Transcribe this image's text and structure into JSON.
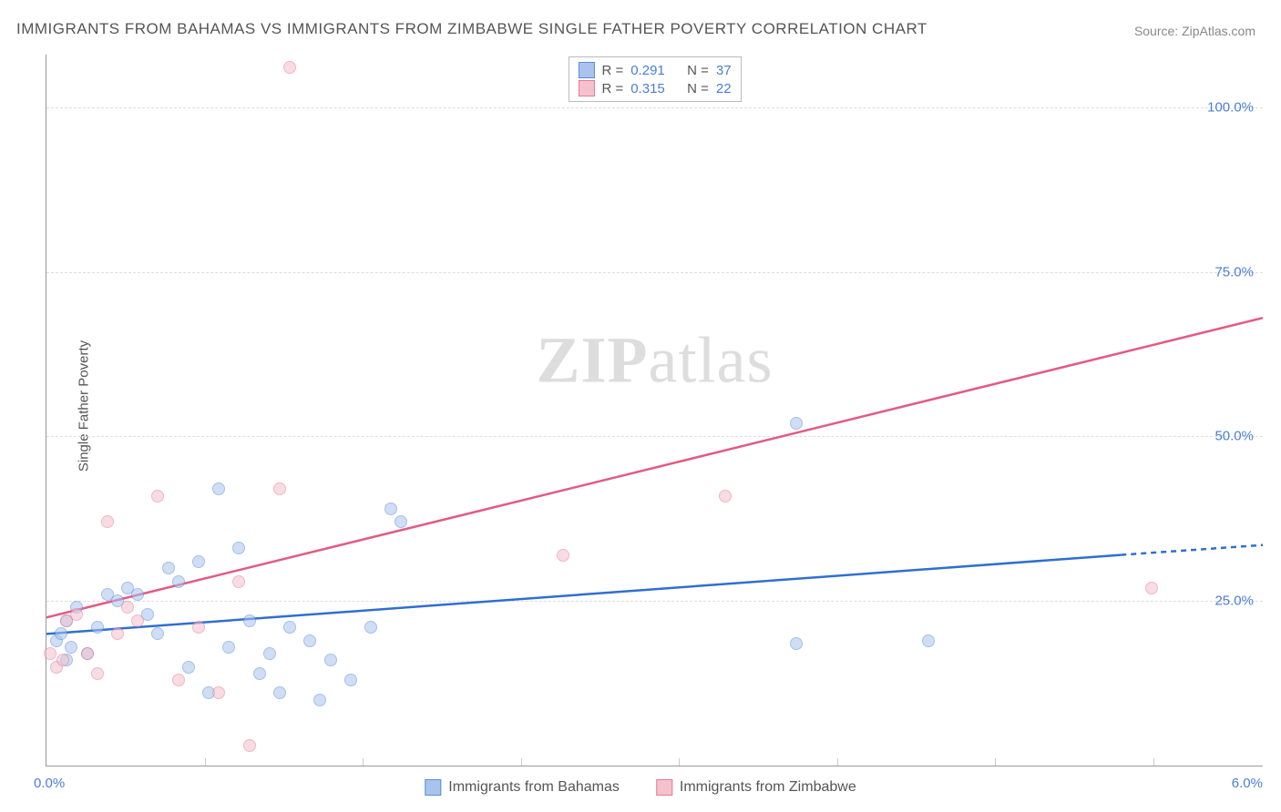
{
  "title": "IMMIGRANTS FROM BAHAMAS VS IMMIGRANTS FROM ZIMBABWE SINGLE FATHER POVERTY CORRELATION CHART",
  "source": "Source: ZipAtlas.com",
  "ylabel": "Single Father Poverty",
  "watermark": "ZIPatlas",
  "chart": {
    "type": "scatter",
    "xlim": [
      0.0,
      6.0
    ],
    "ylim": [
      0.0,
      108.0
    ],
    "x_ticks": [
      0.0,
      6.0
    ],
    "x_tick_labels": [
      "0.0%",
      "6.0%"
    ],
    "y_ticks": [
      25.0,
      50.0,
      75.0,
      100.0
    ],
    "y_tick_labels": [
      "25.0%",
      "50.0%",
      "75.0%",
      "100.0%"
    ],
    "x_grid_positions": [
      0.78,
      1.56,
      2.34,
      3.12,
      3.9,
      4.68,
      5.46
    ],
    "background_color": "#ffffff",
    "grid_color": "#dddddd",
    "axis_color": "#999999",
    "marker_size": 14,
    "marker_line_width": 1.5,
    "marker_opacity": 0.55,
    "series": [
      {
        "name": "Immigrants from Bahamas",
        "color_fill": "#a9c4ec",
        "color_stroke": "#5b8dd8",
        "r_value": "0.291",
        "n_value": "37",
        "trend_line": {
          "x1": 0.0,
          "y1": 20.0,
          "x2": 5.3,
          "y2": 32.0,
          "x3": 6.0,
          "y3": 33.5,
          "color": "#2f6fd0",
          "width": 2.5,
          "dash_after": 5.3
        },
        "points": [
          [
            0.05,
            19
          ],
          [
            0.07,
            20
          ],
          [
            0.1,
            16
          ],
          [
            0.1,
            22
          ],
          [
            0.12,
            18
          ],
          [
            0.15,
            24
          ],
          [
            0.2,
            17
          ],
          [
            0.25,
            21
          ],
          [
            0.3,
            26
          ],
          [
            0.35,
            25
          ],
          [
            0.4,
            27
          ],
          [
            0.45,
            26
          ],
          [
            0.5,
            23
          ],
          [
            0.55,
            20
          ],
          [
            0.6,
            30
          ],
          [
            0.65,
            28
          ],
          [
            0.7,
            15
          ],
          [
            0.75,
            31
          ],
          [
            0.8,
            11
          ],
          [
            0.85,
            42
          ],
          [
            0.9,
            18
          ],
          [
            0.95,
            33
          ],
          [
            1.0,
            22
          ],
          [
            1.05,
            14
          ],
          [
            1.1,
            17
          ],
          [
            1.15,
            11
          ],
          [
            1.2,
            21
          ],
          [
            1.3,
            19
          ],
          [
            1.35,
            10
          ],
          [
            1.4,
            16
          ],
          [
            1.5,
            13
          ],
          [
            1.6,
            21
          ],
          [
            1.7,
            39
          ],
          [
            1.75,
            37
          ],
          [
            3.7,
            52
          ],
          [
            3.7,
            18.5
          ],
          [
            4.35,
            19
          ]
        ]
      },
      {
        "name": "Immigrants from Zimbabwe",
        "color_fill": "#f4c1cd",
        "color_stroke": "#e67a98",
        "r_value": "0.315",
        "n_value": "22",
        "trend_line": {
          "x1": 0.0,
          "y1": 22.5,
          "x2": 6.0,
          "y2": 68.0,
          "color": "#e35a82",
          "width": 2.5
        },
        "points": [
          [
            0.02,
            17
          ],
          [
            0.05,
            15
          ],
          [
            0.08,
            16
          ],
          [
            0.1,
            22
          ],
          [
            0.15,
            23
          ],
          [
            0.2,
            17
          ],
          [
            0.25,
            14
          ],
          [
            0.3,
            37
          ],
          [
            0.35,
            20
          ],
          [
            0.4,
            24
          ],
          [
            0.45,
            22
          ],
          [
            0.55,
            41
          ],
          [
            0.65,
            13
          ],
          [
            0.75,
            21
          ],
          [
            0.85,
            11
          ],
          [
            0.95,
            28
          ],
          [
            1.0,
            3
          ],
          [
            1.15,
            42
          ],
          [
            1.2,
            106
          ],
          [
            2.55,
            32
          ],
          [
            3.35,
            41
          ],
          [
            5.45,
            27
          ]
        ]
      }
    ]
  },
  "r_legend": {
    "r_label": "R =",
    "n_label": "N ="
  },
  "bottom_legend_labels": [
    "Immigrants from Bahamas",
    "Immigrants from Zimbabwe"
  ]
}
